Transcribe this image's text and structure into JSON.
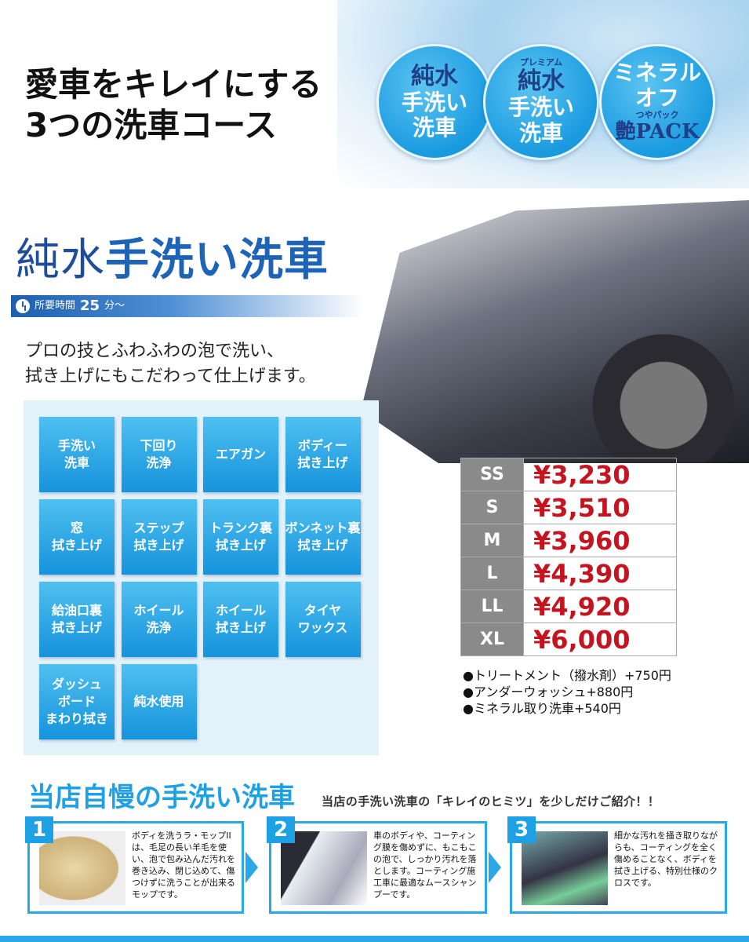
{
  "header": {
    "title_line1": "愛車をキレイにする",
    "title_line2": "3つの洗車コース"
  },
  "courses": [
    {
      "line1": "純水",
      "line2": "手洗い",
      "line3": "洗車"
    },
    {
      "ruby": "プレミアム",
      "line1": "純水",
      "line2": "手洗い",
      "line3": "洗車"
    },
    {
      "line1": "ミネラル",
      "line2": "オフ",
      "ruby": "つやパック",
      "line3": "艶PACK"
    }
  ],
  "course": {
    "title_a": "純水",
    "title_b": "手洗い洗車",
    "time_label": "所要時間",
    "time_value": "25",
    "time_unit": "分〜",
    "icon": "clock-icon",
    "desc_line1": "プロの技とふわふわの泡で洗い、",
    "desc_line2": "拭き上げにもこだわって仕上げます。"
  },
  "services": [
    [
      "手洗い",
      "洗車"
    ],
    [
      "下回り",
      "洗浄"
    ],
    [
      "エアガン"
    ],
    [
      "ボディー",
      "拭き上げ"
    ],
    [
      "窓",
      "拭き上げ"
    ],
    [
      "ステップ",
      "拭き上げ"
    ],
    [
      "トランク裏",
      "拭き上げ"
    ],
    [
      "ボンネット裏",
      "拭き上げ"
    ],
    [
      "給油口裏",
      "拭き上げ"
    ],
    [
      "ホイール",
      "洗浄"
    ],
    [
      "ホイール",
      "拭き上げ"
    ],
    [
      "タイヤ",
      "ワックス"
    ],
    [
      "ダッシュ",
      "ボード",
      "まわり拭き"
    ],
    [
      "純水使用"
    ]
  ],
  "prices": [
    {
      "size": "SS",
      "price": "¥3,230"
    },
    {
      "size": "S",
      "price": "¥3,510"
    },
    {
      "size": "M",
      "price": "¥3,960"
    },
    {
      "size": "L",
      "price": "¥4,390"
    },
    {
      "size": "LL",
      "price": "¥4,920"
    },
    {
      "size": "XL",
      "price": "¥6,000"
    }
  ],
  "options": [
    "●トリートメント（撥水剤）+750円",
    "●アンダーウォッシュ+880円",
    "●ミネラル取り洗車+540円"
  ],
  "secret": {
    "title": "当店自慢の手洗い洗車",
    "subtitle": "当店の手洗い洗車の「キレイのヒミツ」を少しだけご紹介！！",
    "steps": [
      {
        "num": "1",
        "text": "ボディを洗うラ・モップIIは、毛足の長い羊毛を使い、泡で包み込んだ汚れを巻き込み、閉じ込めて、傷つけずに洗うことが出来るモップです。"
      },
      {
        "num": "2",
        "text": "車のボディや、コーティング膜を傷めずに、もこもこの泡で、しっかり汚れを落とします。コーティング施工車に最適なムースシャンプーです。"
      },
      {
        "num": "3",
        "text": "細かな汚れを掻き取りながらも、コーティングを全く傷めることなく、ボディを拭き上げる、特別仕様のクロスです。"
      }
    ]
  },
  "colors": {
    "accent": "#1ea0e4",
    "navy": "#1d63b8",
    "price": "#c4141f"
  }
}
